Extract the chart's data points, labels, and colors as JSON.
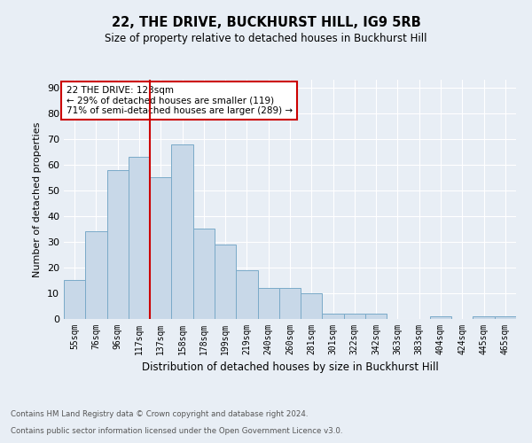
{
  "title": "22, THE DRIVE, BUCKHURST HILL, IG9 5RB",
  "subtitle": "Size of property relative to detached houses in Buckhurst Hill",
  "xlabel": "Distribution of detached houses by size in Buckhurst Hill",
  "ylabel": "Number of detached properties",
  "footnote1": "Contains HM Land Registry data © Crown copyright and database right 2024.",
  "footnote2": "Contains public sector information licensed under the Open Government Licence v3.0.",
  "annotation_line1": "22 THE DRIVE: 123sqm",
  "annotation_line2": "← 29% of detached houses are smaller (119)",
  "annotation_line3": "71% of semi-detached houses are larger (289) →",
  "bar_labels": [
    "55sqm",
    "76sqm",
    "96sqm",
    "117sqm",
    "137sqm",
    "158sqm",
    "178sqm",
    "199sqm",
    "219sqm",
    "240sqm",
    "260sqm",
    "281sqm",
    "301sqm",
    "322sqm",
    "342sqm",
    "363sqm",
    "383sqm",
    "404sqm",
    "424sqm",
    "445sqm",
    "465sqm"
  ],
  "bar_values": [
    15,
    34,
    58,
    63,
    55,
    68,
    35,
    29,
    19,
    12,
    12,
    10,
    2,
    2,
    2,
    0,
    0,
    1,
    0,
    1,
    1
  ],
  "bar_color": "#c8d8e8",
  "bar_edge_color": "#7aaac8",
  "vline_x": 3.5,
  "vline_color": "#cc0000",
  "annotation_box_color": "#cc0000",
  "background_color": "#e8eef5",
  "grid_color": "#ffffff",
  "ylim": [
    0,
    93
  ],
  "yticks": [
    0,
    10,
    20,
    30,
    40,
    50,
    60,
    70,
    80,
    90
  ]
}
